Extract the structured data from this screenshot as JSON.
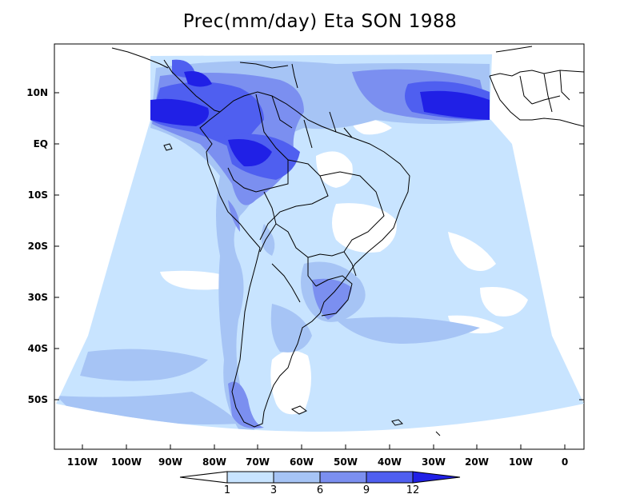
{
  "title": "Prec(mm/day) Eta SON 1988",
  "lat_labels": [
    "10N",
    "EQ",
    "10S",
    "20S",
    "30S",
    "40S",
    "50S"
  ],
  "lon_labels": [
    "110W",
    "100W",
    "90W",
    "80W",
    "70W",
    "60W",
    "50W",
    "40W",
    "30W",
    "20W",
    "10W",
    "0"
  ],
  "colorbar": {
    "labels": [
      "1",
      "3",
      "6",
      "9",
      "12"
    ],
    "colors": [
      "#ffffff",
      "#c8e4ff",
      "#a6c4f5",
      "#7b8ff0",
      "#4f5ff0",
      "#2020e6"
    ]
  },
  "colors": {
    "level_1_3": "#c8e4ff",
    "level_3_6": "#a6c4f5",
    "level_6_9": "#7b8ff0",
    "level_9_12": "#4f5ff0",
    "level_12_plus": "#2020e6",
    "coastline": "#000000"
  }
}
